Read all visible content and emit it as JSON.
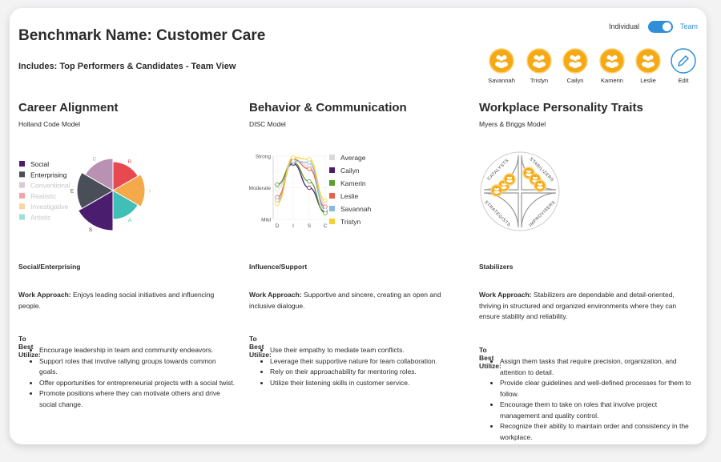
{
  "header": {
    "title": "Benchmark Name: Customer Care",
    "subtitle": "Includes: Top Performers & Candidates - Team View",
    "toggle": {
      "left": "Individual",
      "right": "Team"
    }
  },
  "people": [
    "Savannah",
    "Tristyn",
    "Cailyn",
    "Kamerin",
    "Leslie"
  ],
  "edit": "Edit",
  "sections": [
    {
      "title": "Career Alignment",
      "model": "Holland Code Model",
      "chart": {
        "type": "polar-area",
        "categories": [
          "Social",
          "Enterprising",
          "Conventional",
          "Realistic",
          "Investigative",
          "Artistic"
        ],
        "letters": [
          "S",
          "E",
          "C",
          "R",
          "I",
          "A"
        ],
        "values": [
          100,
          90,
          80,
          72,
          80,
          72
        ],
        "colors": [
          "#4b1d6f",
          "#4a4e58",
          "#b891b3",
          "#e8484f",
          "#f4a94a",
          "#3fbfb6"
        ],
        "highlight": [
          true,
          true,
          false,
          false,
          false,
          false
        ]
      },
      "summary": "Social/Enterprising",
      "approach_label": "Work Approach:",
      "approach": "Enjoys leading social initiatives and influencing people.",
      "utilize_label": "To Best Utilize:",
      "bullets": [
        "Encourage leadership in team and community endeavors.",
        "Support roles that involve rallying groups towards common goals.",
        "Offer opportunities for entrepreneurial projects with a social twist.",
        "Promote positions where they can motivate others and drive social change."
      ]
    },
    {
      "title": "Behavior & Communication",
      "model": "DISC Model",
      "chart": {
        "type": "line",
        "categories": [
          "D",
          "I",
          "S",
          "C"
        ],
        "ylim": [
          0,
          100
        ],
        "yticks": [
          {
            "value": 0,
            "label": "Mild"
          },
          {
            "value": 50,
            "label": "Moderate"
          },
          {
            "value": 100,
            "label": "Strong"
          }
        ],
        "series": [
          {
            "name": "Average",
            "color": "#d9d9d9",
            "values": [
              48,
              95,
              85,
              25
            ]
          },
          {
            "name": "Cailyn",
            "color": "#4b1d6f",
            "values": [
              55,
              88,
              50,
              12
            ]
          },
          {
            "name": "Kamerin",
            "color": "#5aa02c",
            "values": [
              55,
              90,
              60,
              10
            ]
          },
          {
            "name": "Leslie",
            "color": "#e8604a",
            "values": [
              35,
              95,
              80,
              20
            ]
          },
          {
            "name": "Savannah",
            "color": "#8ab8e0",
            "values": [
              30,
              92,
              90,
              15
            ]
          },
          {
            "name": "Tristyn",
            "color": "#f5d033",
            "values": [
              25,
              98,
              95,
              30
            ]
          }
        ]
      },
      "summary": "Influence/Support",
      "approach_label": "Work Approach:",
      "approach": "Supportive and sincere, creating an open and inclusive dialogue.",
      "utilize_label": "To Best Utilize:",
      "bullets": [
        "Use their empathy to mediate team conflicts.",
        "Leverage their supportive nature for team collaboration.",
        "Rely on their approachability for mentoring roles.",
        "Utilize their listening skills in customer service."
      ]
    },
    {
      "title": "Workplace Personality Traits",
      "model": "Myers & Briggs Model",
      "quadrants": [
        "CATALYSTS",
        "STABILIZERS",
        "STRATEGISTS",
        "IMPROVISERS"
      ],
      "summary": "Stabilizers",
      "approach_label": "Work Approach:",
      "approach": "Stabilizers are dependable and detail-oriented, thriving in structured and organized environments where they can ensure stability and reliability.",
      "utilize_label": "To Best Utilize:",
      "bullets": [
        "Assign them tasks that require precision, organization, and attention to detail.",
        "Provide clear guidelines and well-defined processes for them to follow.",
        "Encourage them to take on roles that involve project management and quality control.",
        "Recognize their ability to maintain order and consistency in the workplace."
      ]
    }
  ]
}
